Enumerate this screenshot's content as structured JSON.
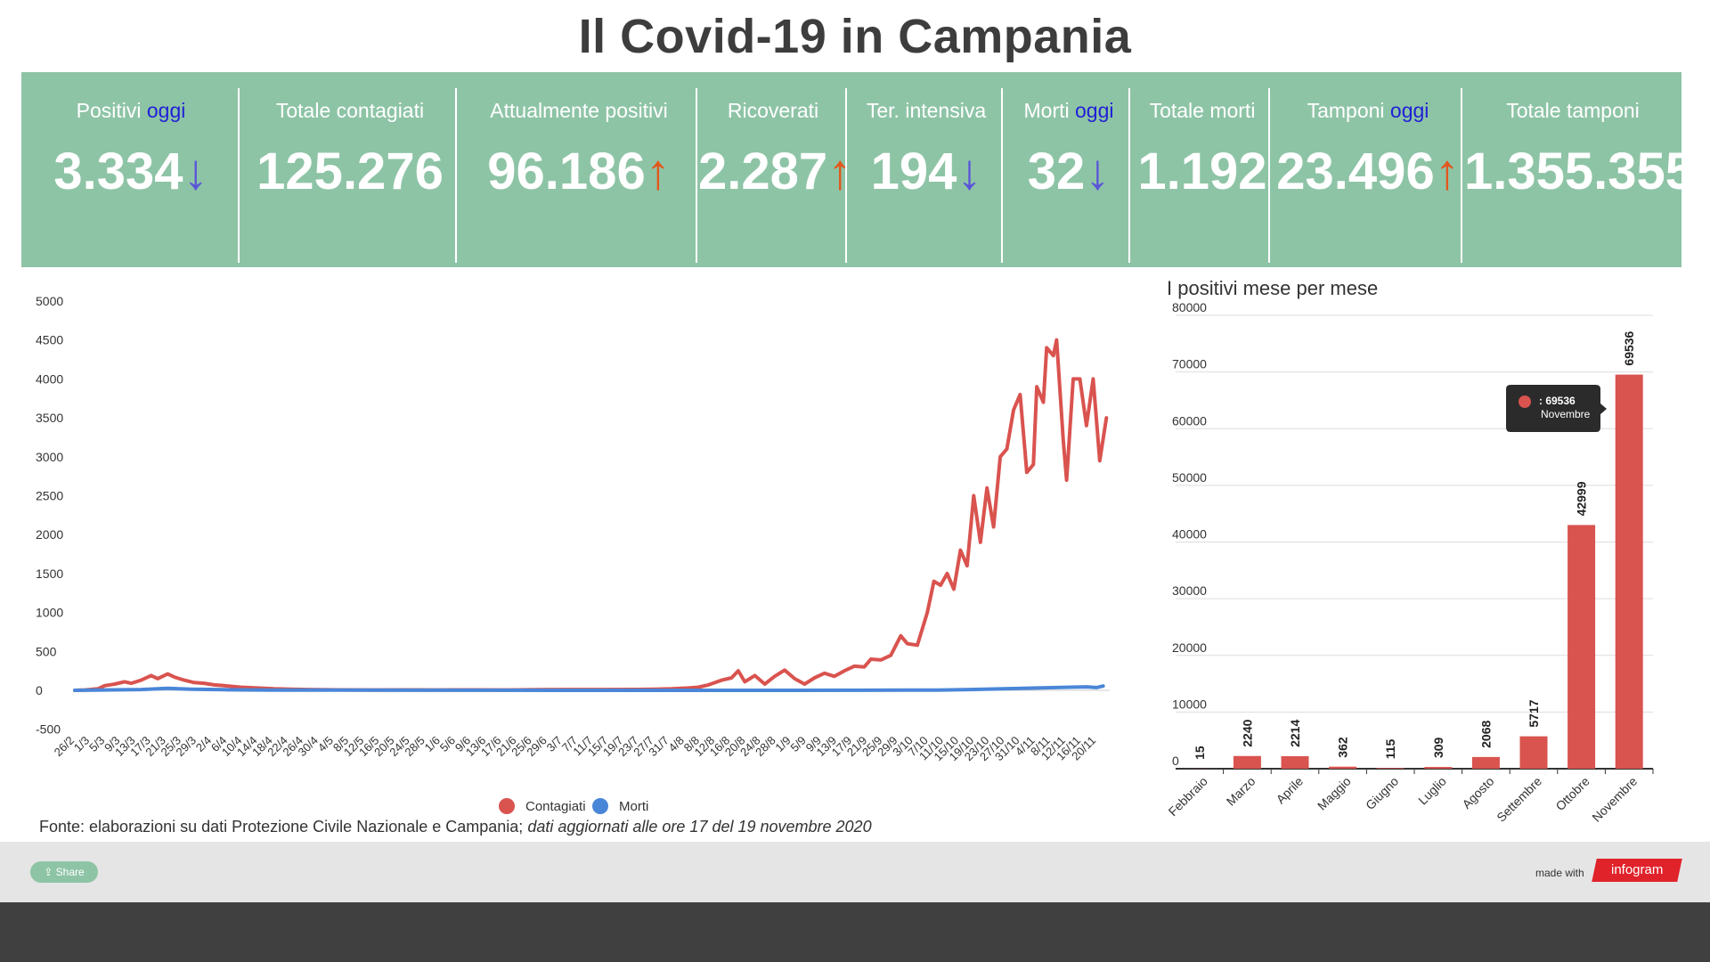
{
  "title": "Il Covid-19 in Campania",
  "stats": [
    {
      "label": "Positivi",
      "highlight": "oggi",
      "value": "3.334",
      "arrow": "↓",
      "trend": "down"
    },
    {
      "label": "Totale contagiati",
      "highlight": "",
      "value": "125.276",
      "arrow": "",
      "trend": ""
    },
    {
      "label": "Attualmente positivi",
      "highlight": "",
      "value": "96.186",
      "arrow": "↑",
      "trend": "up"
    },
    {
      "label": "Ricoverati",
      "highlight": "",
      "value": "2.287",
      "arrow": "↑",
      "trend": "up"
    },
    {
      "label": "Ter. intensiva",
      "highlight": "",
      "value": "194",
      "arrow": "↓",
      "trend": "down"
    },
    {
      "label": "Morti",
      "highlight": "oggi",
      "value": "32",
      "arrow": "↓",
      "trend": "down"
    },
    {
      "label": "Totale morti",
      "highlight": "",
      "value": "1.192",
      "arrow": "",
      "trend": ""
    },
    {
      "label": "Tamponi",
      "highlight": "oggi",
      "value": "23.496",
      "arrow": "↑",
      "trend": "up"
    },
    {
      "label": "Totale tamponi",
      "highlight": "",
      "value": "1.355.355",
      "arrow": "",
      "trend": ""
    }
  ],
  "chart_data": [
    {
      "type": "line",
      "title": "",
      "xlabel": "",
      "ylabel": "",
      "ylim": [
        -500,
        5000
      ],
      "yticks": [
        5000,
        4500,
        4000,
        3500,
        3000,
        2500,
        2000,
        1500,
        1000,
        500,
        0,
        -500
      ],
      "x_tick_labels": [
        "26/2",
        "1/3",
        "5/3",
        "9/3",
        "13/3",
        "17/3",
        "21/3",
        "25/3",
        "29/3",
        "2/4",
        "6/4",
        "10/4",
        "14/4",
        "18/4",
        "22/4",
        "26/4",
        "30/4",
        "4/5",
        "8/5",
        "12/5",
        "16/5",
        "20/5",
        "24/5",
        "28/5",
        "1/6",
        "5/6",
        "9/6",
        "13/6",
        "17/6",
        "21/6",
        "25/6",
        "29/6",
        "3/7",
        "7/7",
        "11/7",
        "15/7",
        "19/7",
        "23/7",
        "27/7",
        "31/7",
        "4/8",
        "8/8",
        "12/8",
        "16/8",
        "20/8",
        "24/8",
        "28/8",
        "1/9",
        "5/9",
        "9/9",
        "13/9",
        "17/9",
        "21/9",
        "25/9",
        "29/9",
        "3/10",
        "7/10",
        "11/10",
        "15/10",
        "19/10",
        "23/10",
        "27/10",
        "31/10",
        "4/11",
        "8/11",
        "12/11",
        "16/11",
        "20/11"
      ],
      "grid": false,
      "legend_position": "bottom",
      "series": [
        {
          "name": "Contagiati",
          "color": "#d9534f",
          "points": [
            [
              0,
              0
            ],
            [
              3,
              5
            ],
            [
              7,
              20
            ],
            [
              9,
              60
            ],
            [
              12,
              80
            ],
            [
              15,
              110
            ],
            [
              17,
              90
            ],
            [
              20,
              130
            ],
            [
              23,
              190
            ],
            [
              25,
              150
            ],
            [
              28,
              210
            ],
            [
              30,
              170
            ],
            [
              33,
              130
            ],
            [
              36,
              100
            ],
            [
              39,
              90
            ],
            [
              42,
              70
            ],
            [
              45,
              60
            ],
            [
              50,
              40
            ],
            [
              55,
              30
            ],
            [
              60,
              20
            ],
            [
              65,
              15
            ],
            [
              70,
              10
            ],
            [
              80,
              6
            ],
            [
              90,
              5
            ],
            [
              100,
              6
            ],
            [
              110,
              5
            ],
            [
              120,
              6
            ],
            [
              130,
              5
            ],
            [
              140,
              8
            ],
            [
              150,
              10
            ],
            [
              160,
              10
            ],
            [
              170,
              12
            ],
            [
              175,
              15
            ],
            [
              180,
              20
            ],
            [
              185,
              30
            ],
            [
              188,
              40
            ],
            [
              191,
              70
            ],
            [
              195,
              130
            ],
            [
              198,
              160
            ],
            [
              200,
              250
            ],
            [
              202,
              110
            ],
            [
              205,
              190
            ],
            [
              208,
              80
            ],
            [
              211,
              180
            ],
            [
              214,
              260
            ],
            [
              217,
              150
            ],
            [
              220,
              80
            ],
            [
              223,
              160
            ],
            [
              226,
              220
            ],
            [
              229,
              180
            ],
            [
              232,
              250
            ],
            [
              235,
              310
            ],
            [
              238,
              300
            ],
            [
              240,
              400
            ],
            [
              243,
              390
            ],
            [
              246,
              450
            ],
            [
              249,
              700
            ],
            [
              251,
              600
            ],
            [
              254,
              580
            ],
            [
              257,
              1000
            ],
            [
              259,
              1400
            ],
            [
              261,
              1350
            ],
            [
              263,
              1500
            ],
            [
              265,
              1300
            ],
            [
              267,
              1800
            ],
            [
              269,
              1600
            ],
            [
              271,
              2500
            ],
            [
              273,
              1900
            ],
            [
              275,
              2600
            ],
            [
              277,
              2100
            ],
            [
              279,
              3000
            ],
            [
              281,
              3100
            ],
            [
              283,
              3600
            ],
            [
              285,
              3800
            ],
            [
              287,
              2800
            ],
            [
              289,
              2900
            ],
            [
              290,
              3900
            ],
            [
              292,
              3700
            ],
            [
              293,
              4400
            ],
            [
              295,
              4300
            ],
            [
              296,
              4500
            ],
            [
              298,
              3200
            ],
            [
              299,
              2700
            ],
            [
              301,
              4000
            ],
            [
              303,
              4000
            ],
            [
              305,
              3400
            ],
            [
              307,
              4000
            ],
            [
              309,
              2950
            ],
            [
              311,
              3500
            ]
          ]
        },
        {
          "name": "Morti",
          "color": "#4a86d8",
          "points": [
            [
              0,
              0
            ],
            [
              20,
              10
            ],
            [
              28,
              25
            ],
            [
              35,
              15
            ],
            [
              45,
              8
            ],
            [
              60,
              3
            ],
            [
              100,
              1
            ],
            [
              150,
              0
            ],
            [
              200,
              0
            ],
            [
              240,
              1
            ],
            [
              260,
              3
            ],
            [
              270,
              10
            ],
            [
              280,
              20
            ],
            [
              290,
              30
            ],
            [
              300,
              40
            ],
            [
              305,
              45
            ],
            [
              308,
              35
            ],
            [
              310,
              55
            ]
          ]
        }
      ]
    },
    {
      "type": "bar",
      "title": "I positivi mese per mese",
      "xlabel": "",
      "ylabel": "",
      "ylim": [
        0,
        80000
      ],
      "yticks": [
        80000,
        70000,
        60000,
        50000,
        40000,
        30000,
        20000,
        10000,
        0
      ],
      "grid": true,
      "categories": [
        "Febbraio",
        "Marzo",
        "Aprile",
        "Maggio",
        "Giugno",
        "Luglio",
        "Agosto",
        "Settembre",
        "Ottobre",
        "Novembre"
      ],
      "values": [
        15,
        2240,
        2214,
        362,
        115,
        309,
        2068,
        5717,
        42999,
        69536
      ],
      "color": "#d9534f",
      "tooltip": {
        "value": ": 69536",
        "category": "Novembre"
      }
    }
  ],
  "legend": [
    {
      "name": "Contagiati",
      "color": "#d9534f"
    },
    {
      "name": "Morti",
      "color": "#4a86d8"
    }
  ],
  "source": {
    "normal": "Fonte: elaborazioni su dati Protezione Civile Nazionale e Campania; ",
    "italic": "dati aggiornati alle ore 17 del 19 novembre 2020"
  },
  "footer": {
    "share_label": "Share",
    "made_with": "made with",
    "brand": "infogram"
  }
}
